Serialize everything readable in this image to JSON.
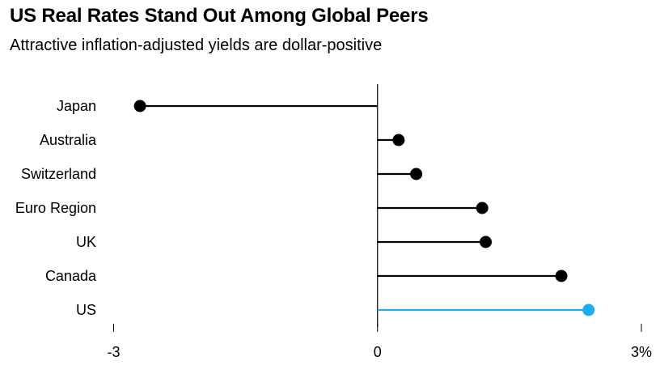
{
  "chart_data": {
    "type": "dot",
    "title": "US Real Rates Stand Out Among Global Peers",
    "subtitle": "Attractive inflation-adjusted yields are dollar-positive",
    "categories": [
      "Japan",
      "Australia",
      "Switzerland",
      "Euro Region",
      "UK",
      "Canada",
      "US"
    ],
    "values": [
      -2.7,
      0.24,
      0.44,
      1.19,
      1.23,
      2.09,
      2.4
    ],
    "highlight": "US",
    "colors": {
      "default": "#000000",
      "highlight": "#1aaeef",
      "zero_line": "#000000",
      "ticks": "#000000"
    },
    "xlim": [
      -3,
      3
    ],
    "x_ticks": [
      -3,
      0,
      3
    ],
    "x_tick_labels": [
      "-3",
      "0",
      "3%"
    ],
    "xlabel": "",
    "ylabel": "",
    "grid": false,
    "legend": "none"
  }
}
